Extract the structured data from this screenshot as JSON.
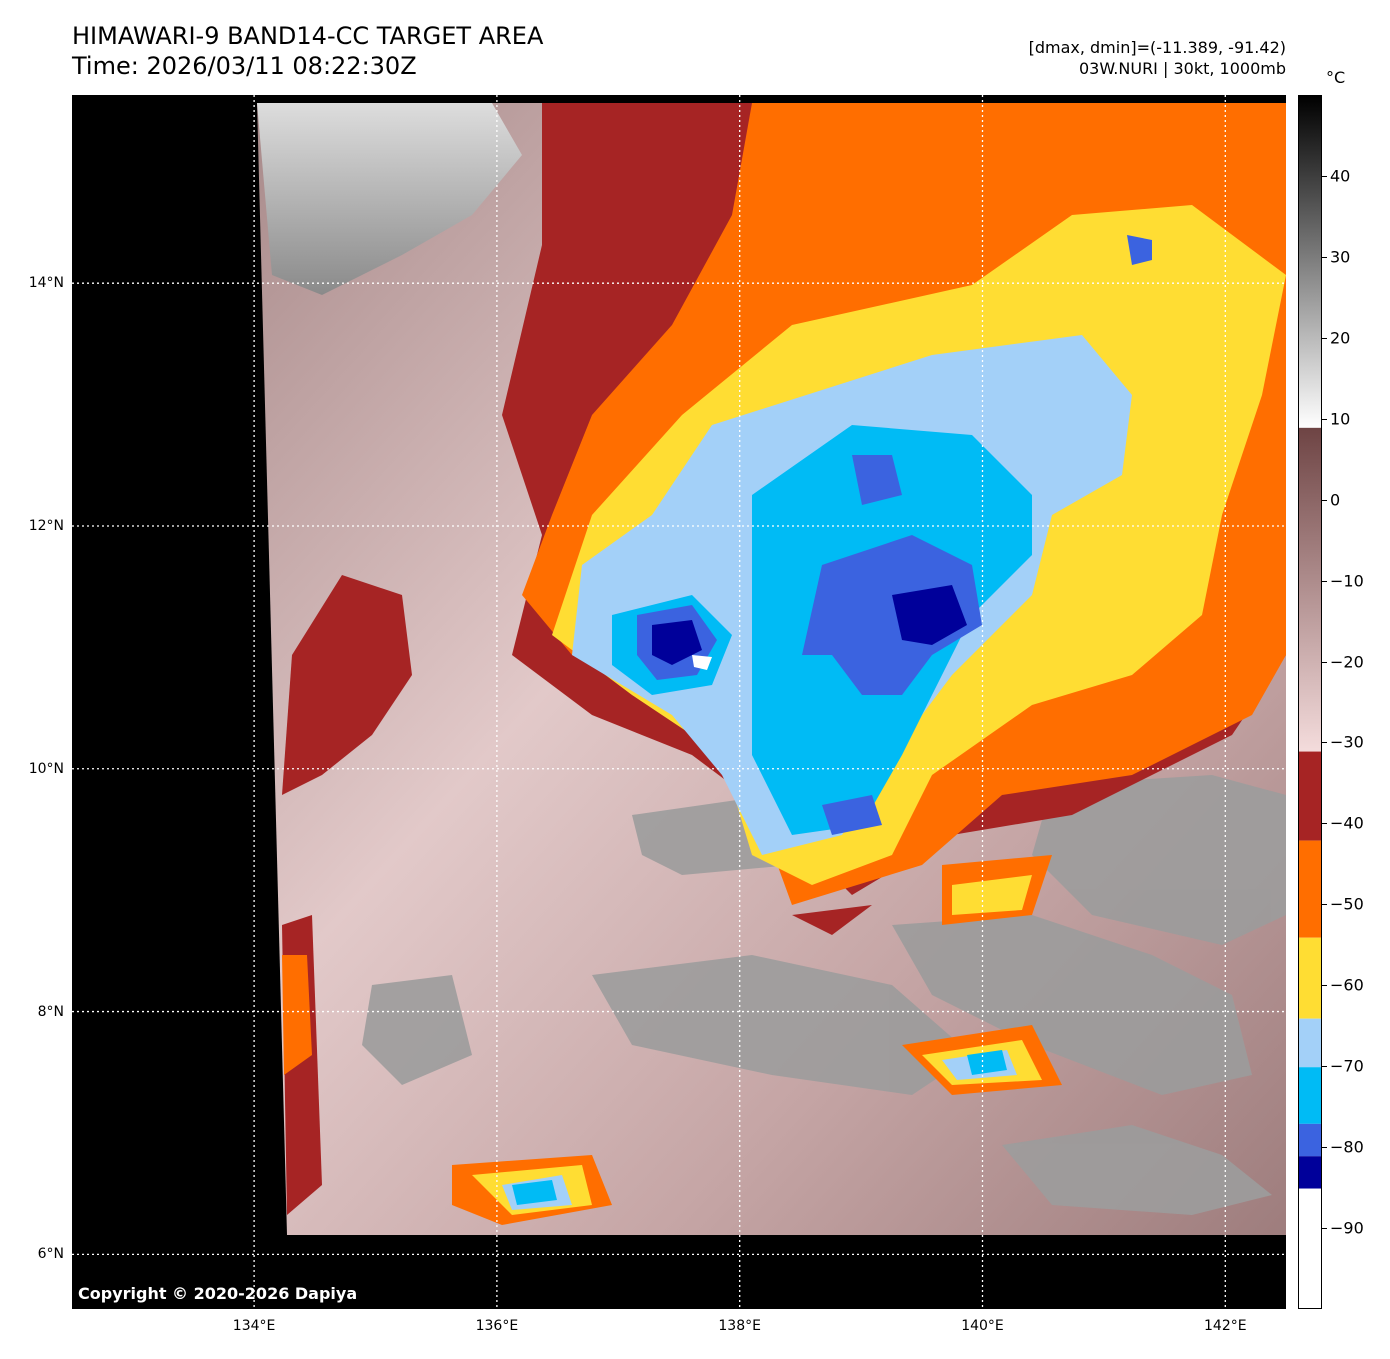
{
  "header": {
    "title_line1": "HIMAWARI-9 BAND14-CC TARGET AREA",
    "title_line2": "Time: 2026/03/11 08:22:30Z",
    "dmax_dmin": "[dmax, dmin]=(-11.389, -91.42)",
    "storm_info": "03W.NURI | 30kt, 1000mb"
  },
  "map": {
    "copyright": "Copyright © 2020-2026 Dapiya",
    "lat_labels": [
      "14°N",
      "12°N",
      "10°N",
      "8°N",
      "6°N"
    ],
    "lon_labels": [
      "134°E",
      "136°E",
      "138°E",
      "140°E",
      "142°E"
    ],
    "lat_values": [
      14,
      12,
      10,
      8,
      6
    ],
    "lon_values": [
      134,
      136,
      138,
      140,
      142
    ],
    "lat_range": [
      5.55,
      15.55
    ],
    "lon_range": [
      132.5,
      142.5
    ],
    "grid": true,
    "grid_style": "dotted-white"
  },
  "colorbar": {
    "unit": "°C",
    "ticks": [
      "40",
      "30",
      "20",
      "10",
      "0",
      "−10",
      "−20",
      "−30",
      "−40",
      "−50",
      "−60",
      "−70",
      "−80",
      "−90"
    ],
    "tick_values": [
      40,
      30,
      20,
      10,
      0,
      -10,
      -20,
      -30,
      -40,
      -50,
      -60,
      -70,
      -80,
      -90
    ],
    "range": [
      -100,
      50
    ],
    "bands": [
      {
        "from": 9,
        "to": 50,
        "gradient": [
          "#ffffff",
          "#000000"
        ]
      },
      {
        "from": -31,
        "to": 9,
        "gradient": [
          "#f4dcdc",
          "#6e4444"
        ]
      },
      {
        "from": -42,
        "to": -31,
        "color": "#a62424"
      },
      {
        "from": -54,
        "to": -42,
        "color": "#ff6e00"
      },
      {
        "from": -64,
        "to": -54,
        "color": "#ffdd33"
      },
      {
        "from": -70,
        "to": -64,
        "color": "#a3d0f8"
      },
      {
        "from": -77,
        "to": -70,
        "color": "#00bbf5"
      },
      {
        "from": -81,
        "to": -77,
        "color": "#3b63e0"
      },
      {
        "from": -85,
        "to": -81,
        "color": "#00009a"
      },
      {
        "from": -100,
        "to": -85,
        "color": "#ffffff"
      }
    ]
  },
  "colors": {
    "space": "#000000",
    "clear_sky": "#c9a7a7",
    "warm_cloud": "#bbbbbb",
    "cold_cloud_red": "#a62424",
    "cold_cloud_orange": "#ff6e00",
    "cold_cloud_yellow": "#ffdd33",
    "cold_cloud_lightblue": "#a3d0f8",
    "cold_cloud_cyan": "#00bbf5",
    "cold_cloud_blue": "#3b63e0",
    "cold_cloud_navy": "#00009a"
  }
}
